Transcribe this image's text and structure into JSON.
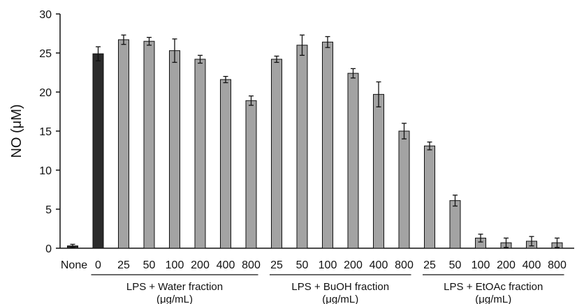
{
  "chart_data": {
    "type": "bar",
    "ylabel": "NO (μM)",
    "ylim": [
      0,
      30
    ],
    "yticks": [
      "0",
      "5",
      "10",
      "15",
      "20",
      "25",
      "30"
    ],
    "grid": false,
    "colors": {
      "control": "#2b2b2b",
      "sample": "#a3a3a3",
      "stroke": "#111111"
    },
    "categories": [
      "None",
      "0",
      "25",
      "50",
      "100",
      "200",
      "400",
      "800",
      "25",
      "50",
      "100",
      "200",
      "400",
      "800",
      "25",
      "50",
      "100",
      "200",
      "400",
      "800"
    ],
    "values": [
      0.3,
      24.9,
      26.7,
      26.5,
      25.3,
      24.2,
      21.6,
      18.9,
      24.2,
      26.0,
      26.4,
      22.4,
      19.7,
      15.0,
      13.1,
      6.1,
      1.3,
      0.7,
      0.9,
      0.7
    ],
    "errors": [
      0.2,
      0.9,
      0.6,
      0.5,
      1.5,
      0.5,
      0.4,
      0.6,
      0.4,
      1.3,
      0.7,
      0.6,
      1.6,
      1.0,
      0.5,
      0.7,
      0.5,
      0.6,
      0.6,
      0.6
    ],
    "bar_colors": [
      "control",
      "control",
      "sample",
      "sample",
      "sample",
      "sample",
      "sample",
      "sample",
      "sample",
      "sample",
      "sample",
      "sample",
      "sample",
      "sample",
      "sample",
      "sample",
      "sample",
      "sample",
      "sample",
      "sample"
    ],
    "groups": [
      {
        "label": "LPS + Water fraction",
        "unit": "(μg/mL)",
        "start": 1,
        "end": 7
      },
      {
        "label": "LPS + BuOH fraction",
        "unit": "(μg/mL)",
        "start": 8,
        "end": 13
      },
      {
        "label": "LPS + EtOAc fraction",
        "unit": "(μg/mL)",
        "start": 14,
        "end": 19
      }
    ]
  }
}
